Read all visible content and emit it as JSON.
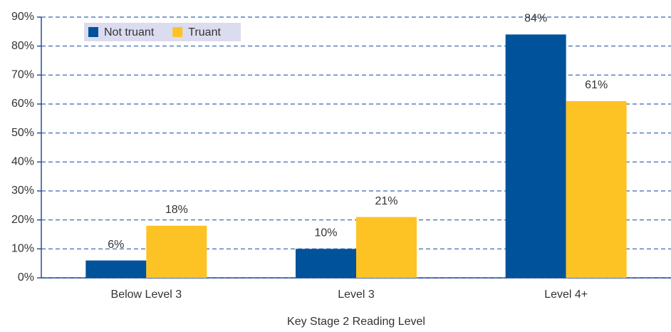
{
  "chart_data": {
    "type": "bar",
    "x_label": "Key Stage 2 Reading Level",
    "categories": [
      "Below Level 3",
      "Level 3",
      "Level 4+"
    ],
    "series": [
      {
        "name": "Not truant",
        "color": "#00529b",
        "values": [
          6,
          10,
          84
        ],
        "value_labels": [
          "6%",
          "10%",
          "84%"
        ]
      },
      {
        "name": "Truant",
        "color": "#fdc325",
        "values": [
          18,
          21,
          61
        ],
        "value_labels": [
          "18%",
          "21%",
          "61%"
        ]
      }
    ],
    "ylim": [
      0,
      90
    ],
    "yticks": [
      {
        "value": 0,
        "label": "0%"
      },
      {
        "value": 10,
        "label": "10%"
      },
      {
        "value": 20,
        "label": "20%"
      },
      {
        "value": 30,
        "label": "30%"
      },
      {
        "value": 40,
        "label": "40%"
      },
      {
        "value": 50,
        "label": "50%"
      },
      {
        "value": 60,
        "label": "60%"
      },
      {
        "value": 70,
        "label": "70%"
      },
      {
        "value": 80,
        "label": "80%"
      },
      {
        "value": 90,
        "label": "90%"
      }
    ],
    "grid": true,
    "legend": "top-left"
  }
}
